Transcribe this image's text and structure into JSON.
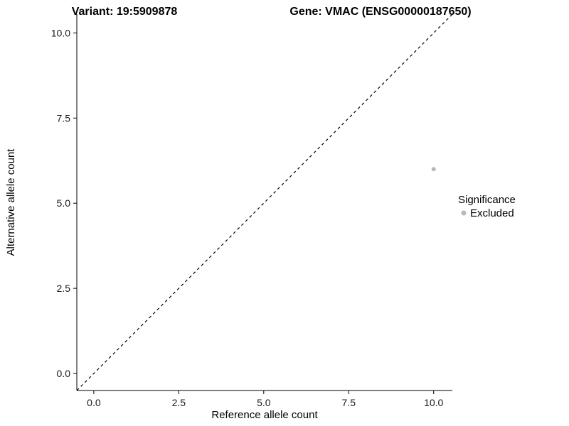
{
  "chart_data": {
    "type": "scatter",
    "title_left": "Variant: 19:5909878",
    "title_right": "Gene: VMAC (ENSG00000187650)",
    "xlabel": "Reference allele count",
    "ylabel": "Alternative allele count",
    "xlim": [
      -0.5,
      10.55
    ],
    "ylim": [
      -0.5,
      10.55
    ],
    "x_ticks": [
      0.0,
      2.5,
      5.0,
      7.5,
      10.0
    ],
    "y_ticks": [
      0.0,
      2.5,
      5.0,
      7.5,
      10.0
    ],
    "grid": false,
    "axis_style": "classic-left-bottom",
    "identity_line": {
      "style": "dashed",
      "color": "#000000",
      "from": -0.5,
      "to": 10.55
    },
    "series": [
      {
        "name": "Excluded",
        "color": "#b8b8b8",
        "points": [
          {
            "x": 10,
            "y": 6
          }
        ]
      }
    ],
    "legend": {
      "title": "Significance",
      "position": "right",
      "items": [
        {
          "label": "Excluded",
          "color": "#b8b8b8"
        }
      ]
    }
  },
  "colors": {
    "axis": "#000000",
    "tick_label": "#1a1a1a",
    "background": "#ffffff",
    "point_excluded": "#b8b8b8"
  }
}
